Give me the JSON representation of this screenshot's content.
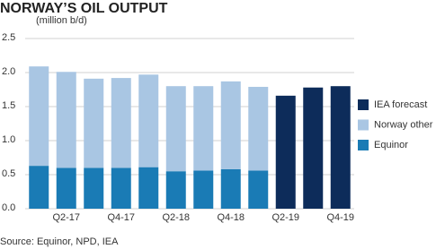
{
  "chart_data": {
    "type": "stacked-bar",
    "title": "NORWAY’S OIL OUTPUT",
    "subtitle": "(million b/d)",
    "source": "Source: Equinor, NPD, IEA",
    "categories": [
      null,
      "Q2-17",
      null,
      "Q4-17",
      null,
      "Q2-18",
      null,
      "Q4-18",
      null,
      "Q2-19",
      null,
      "Q4-19"
    ],
    "series": [
      {
        "name": "Equinor",
        "color": "#1a7bb5",
        "values": [
          0.63,
          0.6,
          0.6,
          0.6,
          0.61,
          0.55,
          0.56,
          0.58,
          0.56,
          null,
          null,
          null
        ]
      },
      {
        "name": "Norway other",
        "color": "#a9c6e3",
        "values": [
          1.46,
          1.41,
          1.31,
          1.32,
          1.36,
          1.25,
          1.24,
          1.29,
          1.23,
          null,
          null,
          null
        ]
      },
      {
        "name": "IEA forecast",
        "color": "#0d2c5a",
        "values": [
          null,
          null,
          null,
          null,
          null,
          null,
          null,
          null,
          null,
          1.66,
          1.78,
          1.8
        ]
      }
    ],
    "ylim": [
      0,
      2.5
    ],
    "yticks": [
      {
        "value": 0,
        "label": "0.0"
      },
      0.5,
      {
        "value": 1,
        "label": "1.0"
      },
      1.5,
      {
        "value": 2,
        "label": "2.0"
      },
      2.5
    ],
    "grid": true,
    "legend": "right"
  }
}
